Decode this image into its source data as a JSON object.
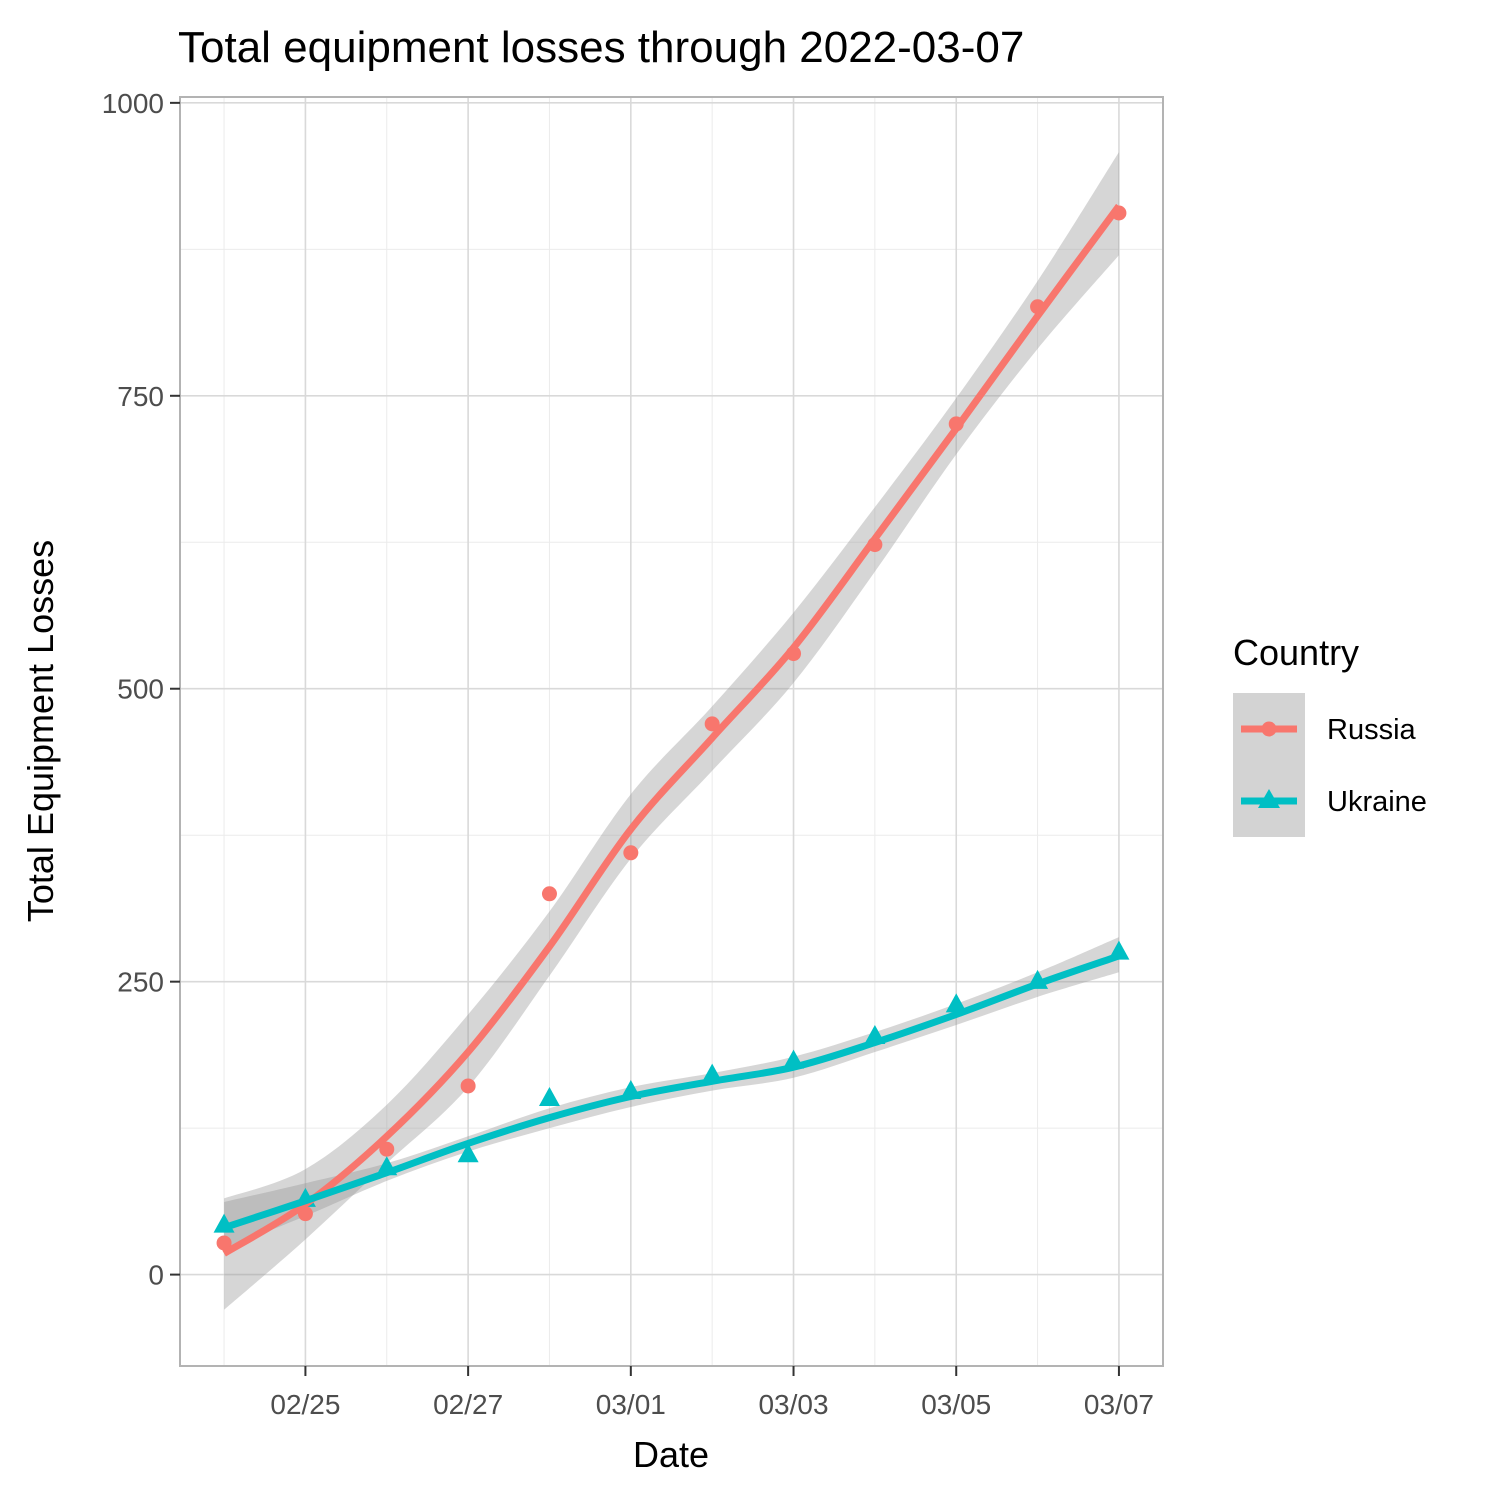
{
  "chart_data": {
    "type": "line",
    "title": "Total equipment losses through 2022-03-07",
    "xlabel": "Date",
    "ylabel": "Total Equipment Losses",
    "x_dates": [
      "2022-02-24",
      "2022-02-25",
      "2022-02-26",
      "2022-02-27",
      "2022-02-28",
      "2022-03-01",
      "2022-03-02",
      "2022-03-03",
      "2022-03-04",
      "2022-03-05",
      "2022-03-06",
      "2022-03-07"
    ],
    "x_ticks": [
      "2022-02-25",
      "2022-02-27",
      "2022-03-01",
      "2022-03-03",
      "2022-03-05",
      "2022-03-07"
    ],
    "x_tick_labels": [
      "02/25",
      "02/27",
      "03/01",
      "03/03",
      "03/05",
      "03/07"
    ],
    "xlim": [
      "2022-02-23T11:00",
      "2022-03-07T13:00"
    ],
    "ylim": [
      -78,
      1005
    ],
    "y_ticks": [
      0,
      250,
      500,
      750,
      1000
    ],
    "y_tick_labels": [
      "0",
      "250",
      "500",
      "750",
      "1000"
    ],
    "grid": true,
    "legend": {
      "title": "Country",
      "position": "right"
    },
    "series": [
      {
        "name": "Russia",
        "color": "#F8766D",
        "marker": "circle",
        "values": [
          27,
          52,
          107,
          161,
          325,
          360,
          470,
          530,
          623,
          726,
          826,
          906
        ],
        "smooth": [
          18,
          60,
          118,
          190,
          280,
          380,
          458,
          535,
          628,
          722,
          818,
          912
        ],
        "ci_lower": [
          -30,
          30,
          95,
          160,
          255,
          355,
          430,
          505,
          600,
          700,
          790,
          870
        ],
        "ci_upper": [
          65,
          90,
          145,
          222,
          310,
          410,
          485,
          565,
          655,
          748,
          848,
          958
        ]
      },
      {
        "name": "Ukraine",
        "color": "#00BFC4",
        "marker": "triangle",
        "values": [
          42,
          64,
          91,
          102,
          150,
          156,
          170,
          182,
          203,
          230,
          250,
          275
        ],
        "smooth": [
          40,
          63,
          87,
          112,
          134,
          152,
          165,
          177,
          198,
          222,
          248,
          272
        ],
        "ci_lower": [
          22,
          50,
          80,
          105,
          125,
          143,
          157,
          168,
          190,
          213,
          237,
          258
        ],
        "ci_upper": [
          62,
          78,
          95,
          118,
          142,
          160,
          172,
          186,
          207,
          231,
          258,
          288
        ]
      }
    ]
  }
}
